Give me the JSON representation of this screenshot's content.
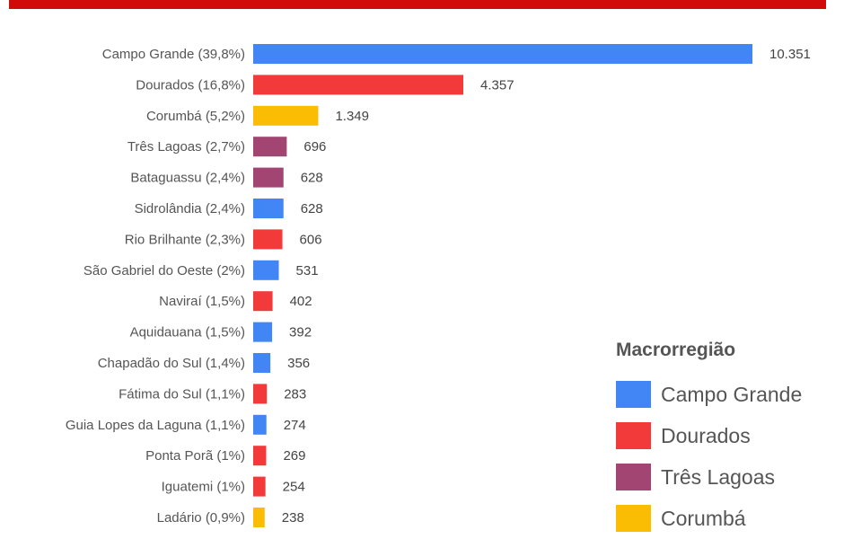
{
  "chart_data": {
    "type": "bar",
    "orientation": "horizontal",
    "title": "",
    "xlabel": "",
    "ylabel": "",
    "categories": [
      "Campo Grande (39,8%)",
      "Dourados (16,8%)",
      "Corumbá (5,2%)",
      "Três Lagoas (2,7%)",
      "Bataguassu (2,4%)",
      "Sidrolândia (2,4%)",
      "Rio Brilhante (2,3%)",
      "São Gabriel do Oeste (2%)",
      "Naviraí (1,5%)",
      "Aquidauana (1,5%)",
      "Chapadão do Sul (1,4%)",
      "Fátima do Sul (1,1%)",
      "Guia Lopes da Laguna (1,1%)",
      "Ponta Porã (1%)",
      "Iguatemi (1%)",
      "Ladário (0,9%)"
    ],
    "values": [
      10351,
      4357,
      1349,
      696,
      628,
      628,
      606,
      531,
      402,
      392,
      356,
      283,
      274,
      269,
      254,
      238
    ],
    "value_labels": [
      "10.351",
      "4.357",
      "1.349",
      "696",
      "628",
      "628",
      "606",
      "531",
      "402",
      "392",
      "356",
      "283",
      "274",
      "269",
      "254",
      "238"
    ],
    "groups": [
      "Campo Grande",
      "Dourados",
      "Corumbá",
      "Três Lagoas",
      "Três Lagoas",
      "Campo Grande",
      "Dourados",
      "Campo Grande",
      "Dourados",
      "Campo Grande",
      "Campo Grande",
      "Dourados",
      "Campo Grande",
      "Dourados",
      "Dourados",
      "Corumbá"
    ],
    "xlim": [
      0,
      10351
    ],
    "grid": false,
    "legend": {
      "title": "Macrorregião",
      "placement": "bottom-right",
      "entries": [
        {
          "name": "Campo Grande",
          "color": "#4285f4"
        },
        {
          "name": "Dourados",
          "color": "#f23a3a"
        },
        {
          "name": "Três Lagoas",
          "color": "#a24572"
        },
        {
          "name": "Corumbá",
          "color": "#fbbc04"
        }
      ]
    }
  },
  "colors": {
    "top_bar": "#d10a0a"
  }
}
